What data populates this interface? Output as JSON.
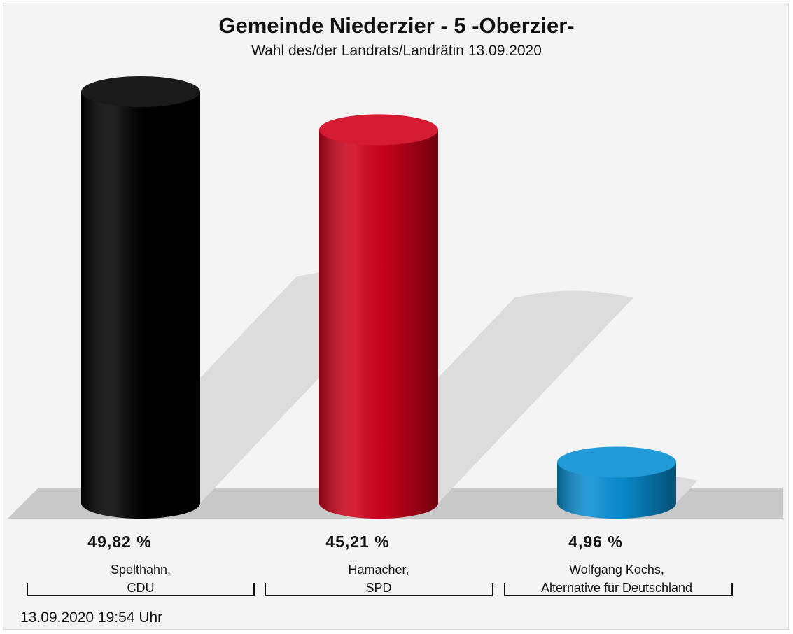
{
  "chart_data": {
    "type": "bar3d",
    "title": "Gemeinde Niederzier - 5 -Oberzier-",
    "subtitle": "Wahl des/der Landrats/Landrätin 13.09.2020",
    "categories": [
      "Spelthahn,\nCDU",
      "Hamacher,\nSPD",
      "Wolfgang Kochs,\nAlternative für Deutschland"
    ],
    "values": [
      49.82,
      45.21,
      4.96
    ],
    "value_labels": [
      "49,82 %",
      "45,21 %",
      "4,96 %"
    ],
    "colors": [
      "#000000",
      "#d0021b",
      "#0a8fd4"
    ],
    "footnote": "13.09.2020 19:54 Uhr"
  }
}
